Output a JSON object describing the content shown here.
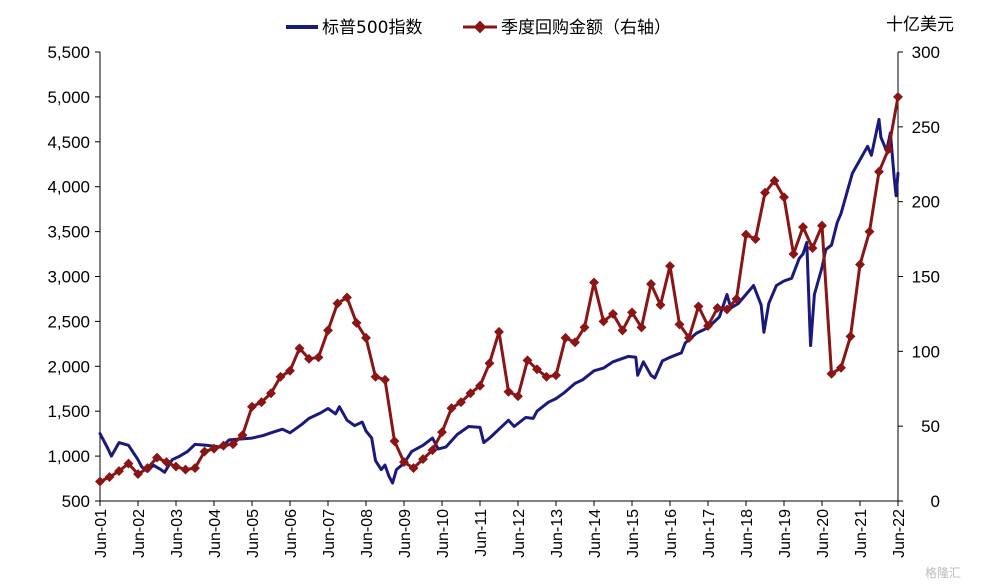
{
  "chart_data": {
    "type": "line",
    "x_labels": [
      "Jun-01",
      "Jun-02",
      "Jun-03",
      "Jun-04",
      "Jun-05",
      "Jun-06",
      "Jun-07",
      "Jun-08",
      "Jun-09",
      "Jun-10",
      "Jun-11",
      "Jun-12",
      "Jun-13",
      "Jun-14",
      "Jun-15",
      "Jun-16",
      "Jun-17",
      "Jun-18",
      "Jun-19",
      "Jun-20",
      "Jun-21",
      "Jun-22"
    ],
    "xlim": [
      2001.5,
      2022.5
    ],
    "y_left": {
      "range": [
        500,
        5500
      ],
      "ticks": [
        "500",
        "1,000",
        "1,500",
        "2,000",
        "2,500",
        "3,000",
        "3,500",
        "4,000",
        "4,500",
        "5,000",
        "5,500"
      ]
    },
    "y_right": {
      "range": [
        0,
        300
      ],
      "ticks": [
        "0",
        "50",
        "100",
        "150",
        "200",
        "250",
        "300"
      ],
      "unit": "十亿美元"
    },
    "legend": [
      "标普500指数",
      "季度回购金额（右轴）"
    ],
    "series": [
      {
        "name": "标普500指数",
        "axis": "left",
        "color": "#1a1a7e",
        "points": [
          [
            2001.5,
            1250
          ],
          [
            2001.7,
            1090
          ],
          [
            2001.8,
            1000
          ],
          [
            2002.0,
            1150
          ],
          [
            2002.25,
            1120
          ],
          [
            2002.5,
            960
          ],
          [
            2002.6,
            880
          ],
          [
            2002.75,
            830
          ],
          [
            2002.9,
            900
          ],
          [
            2003.1,
            850
          ],
          [
            2003.2,
            820
          ],
          [
            2003.4,
            960
          ],
          [
            2003.6,
            1000
          ],
          [
            2003.8,
            1050
          ],
          [
            2004.0,
            1130
          ],
          [
            2004.3,
            1120
          ],
          [
            2004.5,
            1110
          ],
          [
            2004.7,
            1100
          ],
          [
            2004.9,
            1180
          ],
          [
            2005.2,
            1190
          ],
          [
            2005.5,
            1200
          ],
          [
            2005.8,
            1230
          ],
          [
            2006.0,
            1260
          ],
          [
            2006.3,
            1300
          ],
          [
            2006.5,
            1260
          ],
          [
            2006.8,
            1350
          ],
          [
            2007.0,
            1420
          ],
          [
            2007.3,
            1480
          ],
          [
            2007.5,
            1530
          ],
          [
            2007.7,
            1470
          ],
          [
            2007.8,
            1550
          ],
          [
            2008.0,
            1400
          ],
          [
            2008.2,
            1340
          ],
          [
            2008.4,
            1380
          ],
          [
            2008.5,
            1280
          ],
          [
            2008.65,
            1200
          ],
          [
            2008.75,
            950
          ],
          [
            2008.9,
            850
          ],
          [
            2009.0,
            900
          ],
          [
            2009.1,
            780
          ],
          [
            2009.2,
            700
          ],
          [
            2009.3,
            850
          ],
          [
            2009.5,
            920
          ],
          [
            2009.7,
            1050
          ],
          [
            2010.0,
            1120
          ],
          [
            2010.25,
            1200
          ],
          [
            2010.4,
            1080
          ],
          [
            2010.6,
            1100
          ],
          [
            2010.9,
            1240
          ],
          [
            2011.2,
            1330
          ],
          [
            2011.5,
            1320
          ],
          [
            2011.6,
            1150
          ],
          [
            2011.75,
            1200
          ],
          [
            2012.0,
            1300
          ],
          [
            2012.25,
            1400
          ],
          [
            2012.4,
            1330
          ],
          [
            2012.7,
            1430
          ],
          [
            2012.9,
            1420
          ],
          [
            2013.0,
            1500
          ],
          [
            2013.3,
            1600
          ],
          [
            2013.5,
            1640
          ],
          [
            2013.7,
            1700
          ],
          [
            2014.0,
            1810
          ],
          [
            2014.2,
            1850
          ],
          [
            2014.5,
            1950
          ],
          [
            2014.75,
            1980
          ],
          [
            2015.0,
            2050
          ],
          [
            2015.4,
            2110
          ],
          [
            2015.6,
            2100
          ],
          [
            2015.65,
            1900
          ],
          [
            2015.8,
            2050
          ],
          [
            2016.0,
            1900
          ],
          [
            2016.1,
            1870
          ],
          [
            2016.3,
            2060
          ],
          [
            2016.5,
            2100
          ],
          [
            2016.8,
            2150
          ],
          [
            2016.9,
            2260
          ],
          [
            2017.2,
            2370
          ],
          [
            2017.5,
            2430
          ],
          [
            2017.8,
            2550
          ],
          [
            2018.0,
            2800
          ],
          [
            2018.1,
            2650
          ],
          [
            2018.3,
            2700
          ],
          [
            2018.7,
            2900
          ],
          [
            2018.9,
            2680
          ],
          [
            2018.97,
            2380
          ],
          [
            2019.1,
            2700
          ],
          [
            2019.3,
            2900
          ],
          [
            2019.5,
            2950
          ],
          [
            2019.7,
            2980
          ],
          [
            2019.9,
            3200
          ],
          [
            2020.0,
            3250
          ],
          [
            2020.1,
            3380
          ],
          [
            2020.18,
            2450
          ],
          [
            2020.2,
            2230
          ],
          [
            2020.3,
            2800
          ],
          [
            2020.5,
            3100
          ],
          [
            2020.6,
            3300
          ],
          [
            2020.75,
            3350
          ],
          [
            2020.9,
            3600
          ],
          [
            2021.0,
            3700
          ],
          [
            2021.3,
            4150
          ],
          [
            2021.5,
            4300
          ],
          [
            2021.7,
            4450
          ],
          [
            2021.8,
            4350
          ],
          [
            2022.0,
            4750
          ],
          [
            2022.05,
            4550
          ],
          [
            2022.2,
            4400
          ],
          [
            2022.3,
            4600
          ],
          [
            2022.4,
            4100
          ],
          [
            2022.45,
            3900
          ],
          [
            2022.5,
            4150
          ]
        ]
      },
      {
        "name": "季度回购金额（右轴）",
        "axis": "right",
        "color": "#8b1414",
        "points": [
          [
            2001.5,
            13
          ],
          [
            2001.75,
            16
          ],
          [
            2002.0,
            20
          ],
          [
            2002.25,
            25
          ],
          [
            2002.5,
            18
          ],
          [
            2002.75,
            22
          ],
          [
            2003.0,
            29
          ],
          [
            2003.25,
            26
          ],
          [
            2003.5,
            23
          ],
          [
            2003.75,
            21
          ],
          [
            2004.0,
            22
          ],
          [
            2004.25,
            33
          ],
          [
            2004.5,
            35
          ],
          [
            2004.75,
            37
          ],
          [
            2005.0,
            38
          ],
          [
            2005.25,
            44
          ],
          [
            2005.5,
            63
          ],
          [
            2005.75,
            66
          ],
          [
            2006.0,
            72
          ],
          [
            2006.25,
            83
          ],
          [
            2006.5,
            87
          ],
          [
            2006.75,
            102
          ],
          [
            2007.0,
            95
          ],
          [
            2007.25,
            96
          ],
          [
            2007.5,
            114
          ],
          [
            2007.75,
            132
          ],
          [
            2008.0,
            136
          ],
          [
            2008.25,
            119
          ],
          [
            2008.5,
            109
          ],
          [
            2008.75,
            83
          ],
          [
            2009.0,
            81
          ],
          [
            2009.25,
            40
          ],
          [
            2009.5,
            26
          ],
          [
            2009.75,
            22
          ],
          [
            2010.0,
            28
          ],
          [
            2010.25,
            34
          ],
          [
            2010.5,
            46
          ],
          [
            2010.75,
            62
          ],
          [
            2011.0,
            66
          ],
          [
            2011.25,
            72
          ],
          [
            2011.5,
            77
          ],
          [
            2011.75,
            92
          ],
          [
            2012.0,
            113
          ],
          [
            2012.25,
            73
          ],
          [
            2012.5,
            70
          ],
          [
            2012.75,
            94
          ],
          [
            2013.0,
            88
          ],
          [
            2013.25,
            83
          ],
          [
            2013.5,
            84
          ],
          [
            2013.75,
            109
          ],
          [
            2014.0,
            106
          ],
          [
            2014.25,
            116
          ],
          [
            2014.5,
            146
          ],
          [
            2014.75,
            120
          ],
          [
            2015.0,
            125
          ],
          [
            2015.25,
            114
          ],
          [
            2015.5,
            126
          ],
          [
            2015.75,
            116
          ],
          [
            2016.0,
            145
          ],
          [
            2016.25,
            131
          ],
          [
            2016.5,
            157
          ],
          [
            2016.75,
            118
          ],
          [
            2017.0,
            109
          ],
          [
            2017.25,
            130
          ],
          [
            2017.5,
            117
          ],
          [
            2017.75,
            129
          ],
          [
            2018.0,
            128
          ],
          [
            2018.25,
            135
          ],
          [
            2018.5,
            178
          ],
          [
            2018.75,
            175
          ],
          [
            2019.0,
            206
          ],
          [
            2019.25,
            214
          ],
          [
            2019.5,
            203
          ],
          [
            2019.75,
            165
          ],
          [
            2020.0,
            183
          ],
          [
            2020.25,
            169
          ],
          [
            2020.5,
            184
          ],
          [
            2020.75,
            85
          ],
          [
            2021.0,
            89
          ],
          [
            2021.25,
            110
          ],
          [
            2021.5,
            158
          ],
          [
            2021.75,
            180
          ],
          [
            2022.0,
            220
          ],
          [
            2022.25,
            235
          ],
          [
            2022.5,
            270
          ]
        ]
      }
    ]
  },
  "watermark": "格隆汇"
}
